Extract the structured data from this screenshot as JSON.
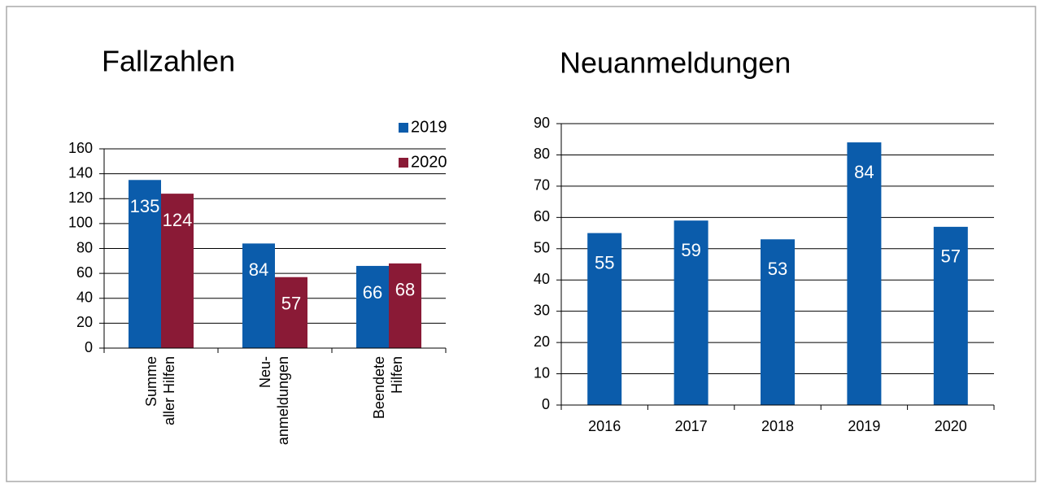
{
  "chart_data": [
    {
      "type": "bar",
      "title": "Fallzahlen",
      "categories": [
        [
          "Summe",
          "aller Hilfen"
        ],
        [
          "Neu-",
          "anmeldungen"
        ],
        [
          "Beendete",
          "Hilfen"
        ]
      ],
      "series": [
        {
          "name": "2019",
          "color": "#0b5cab",
          "values": [
            135,
            84,
            66
          ]
        },
        {
          "name": "2020",
          "color": "#8a1a36",
          "values": [
            124,
            57,
            68
          ]
        }
      ],
      "ylim": [
        0,
        160
      ],
      "yticks": [
        0,
        20,
        40,
        60,
        80,
        100,
        120,
        140,
        160
      ],
      "grid": true,
      "legend": "top-right"
    },
    {
      "type": "bar",
      "title": "Neuanmeldungen",
      "categories": [
        "2016",
        "2017",
        "2018",
        "2019",
        "2020"
      ],
      "series": [
        {
          "name": null,
          "color": "#0b5cab",
          "values": [
            55,
            59,
            53,
            84,
            57
          ]
        }
      ],
      "ylim": [
        0,
        90
      ],
      "yticks": [
        0,
        10,
        20,
        30,
        40,
        50,
        60,
        70,
        80,
        90
      ],
      "grid": true
    }
  ]
}
